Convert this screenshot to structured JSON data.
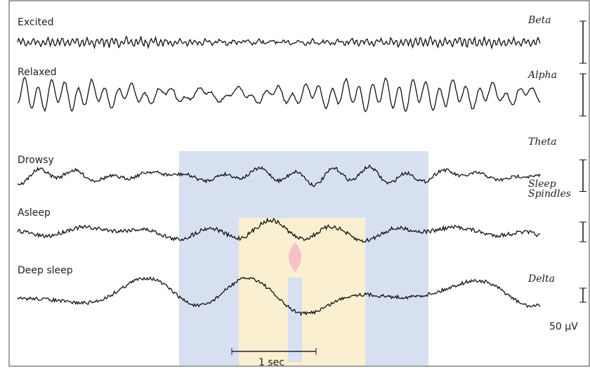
{
  "traces": [
    {
      "label": "Excited",
      "wave": "Beta"
    },
    {
      "label": "Relaxed",
      "wave": "Alpha"
    },
    {
      "label": "Drowsy",
      "wave": "Theta"
    },
    {
      "label": "Asleep",
      "wave": "Sleep Spindles"
    },
    {
      "label": "Deep sleep",
      "wave": "Delta"
    }
  ],
  "scale": {
    "voltage": "50 µV",
    "time": "1 sec"
  }
}
